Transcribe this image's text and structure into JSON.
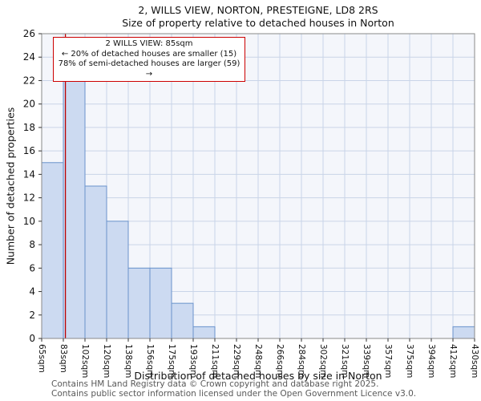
{
  "title": {
    "line1": "2, WILLS VIEW, NORTON, PRESTEIGNE, LD8 2RS",
    "line2": "Size of property relative to detached houses in Norton"
  },
  "annotation": {
    "line1": "2 WILLS VIEW: 85sqm",
    "line2": "← 20% of detached houses are smaller (15)",
    "line3": "78% of semi-detached houses are larger (59) →"
  },
  "footer": {
    "line1": "Contains HM Land Registry data © Crown copyright and database right 2025.",
    "line2": "Contains public sector information licensed under the Open Government Licence v3.0."
  },
  "chart_data": {
    "type": "bar",
    "title": "2, WILLS VIEW, NORTON, PRESTEIGNE, LD8 2RS — Size of property relative to detached houses in Norton",
    "xlabel": "Distribution of detached houses by size in Norton",
    "ylabel": "Number of detached properties",
    "categories": [
      "65sqm",
      "83sqm",
      "102sqm",
      "120sqm",
      "138sqm",
      "156sqm",
      "175sqm",
      "193sqm",
      "211sqm",
      "229sqm",
      "248sqm",
      "266sqm",
      "284sqm",
      "302sqm",
      "321sqm",
      "339sqm",
      "357sqm",
      "375sqm",
      "394sqm",
      "412sqm",
      "430sqm"
    ],
    "bin_edges_sqm": [
      65,
      83,
      102,
      120,
      138,
      156,
      175,
      193,
      211,
      229,
      248,
      266,
      284,
      302,
      321,
      339,
      357,
      375,
      394,
      412,
      430
    ],
    "values": [
      15,
      22,
      13,
      10,
      6,
      6,
      3,
      1,
      0,
      0,
      0,
      0,
      0,
      0,
      0,
      0,
      0,
      0,
      0,
      1
    ],
    "ylim": [
      0,
      26
    ],
    "ytick_step": 2,
    "grid": true,
    "legend": "none",
    "marker": {
      "label": "2 WILLS VIEW",
      "value_sqm": 85,
      "xmin": 65,
      "xmax": 430,
      "color": "#bb0000"
    },
    "colors": {
      "bar_fill": "#ccdaf1",
      "bar_edge": "#6a93cc",
      "grid": "#c9d4e8",
      "plot_bg": "#f4f6fb",
      "frame": "#8a8a8a",
      "tick": "#333333",
      "text": "#111111",
      "annotation_border": "#cc0000",
      "footer_text": "#595959"
    }
  }
}
